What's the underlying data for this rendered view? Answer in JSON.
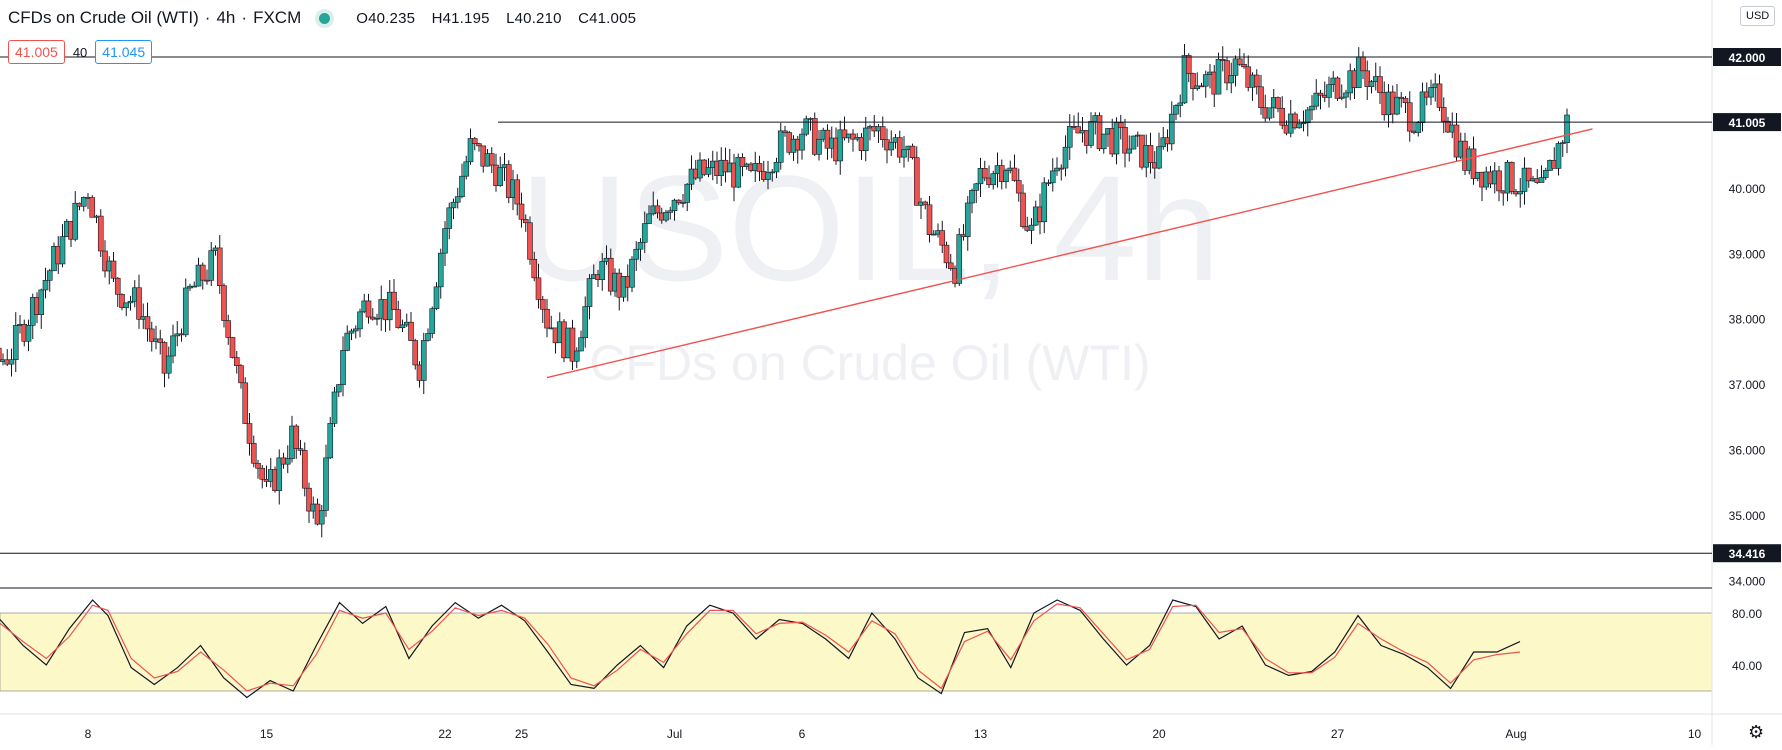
{
  "header": {
    "symbol": "CFDs on Crude Oil (WTI)",
    "interval": "4h",
    "source": "FXCM",
    "open": "O40.235",
    "high": "H41.195",
    "low": "L40.210",
    "close": "C41.005"
  },
  "prices": {
    "bid": "41.005",
    "spread": "40",
    "ask": "41.045"
  },
  "currency": "USD",
  "watermark": {
    "line1": "USOIL, 4h",
    "line2": "CFDs on Crude Oil (WTI)"
  },
  "colors": {
    "up": "#26a69a",
    "down": "#ef5350",
    "trendline": "#ef5350",
    "stoch_k": "#131722",
    "stoch_d": "#ef5350",
    "stoch_band": "#fdf8c8"
  },
  "chart_data": [
    {
      "type": "candlestick",
      "title": "",
      "ylim": [
        33.8,
        42.8
      ],
      "y_ticks": [
        "42.000",
        "41.000",
        "40.000",
        "39.000",
        "38.000",
        "37.000",
        "36.000",
        "35.000",
        "34.000"
      ],
      "x_ticks": [
        "8",
        "15",
        "22",
        "25",
        "Jul",
        "6",
        "13",
        "20",
        "27",
        "Aug",
        "10"
      ],
      "x_tick_dates": [
        "2020-06-08",
        "2020-06-15",
        "2020-06-22",
        "2020-06-25",
        "2020-07-01",
        "2020-07-06",
        "2020-07-13",
        "2020-07-20",
        "2020-07-27",
        "2020-08-03",
        "2020-08-10"
      ],
      "horizontal_levels": [
        {
          "label": "42.000",
          "value": 42.0
        },
        {
          "label": "41.005",
          "value": 41.005
        },
        {
          "label": "34.416",
          "value": 34.416
        }
      ],
      "trendline": {
        "start": [
          "2020-06-26",
          37.1
        ],
        "end": [
          "2020-08-06",
          40.9
        ]
      },
      "path_close": [
        [
          "2020-06-01",
          36.6
        ],
        [
          "2020-06-03",
          36.9
        ],
        [
          "2020-06-05",
          37.5
        ],
        [
          "2020-06-08",
          40.0
        ],
        [
          "2020-06-09",
          38.5
        ],
        [
          "2020-06-10",
          38.2
        ],
        [
          "2020-06-11",
          37.2
        ],
        [
          "2020-06-12",
          38.4
        ],
        [
          "2020-06-13",
          38.9
        ],
        [
          "2020-06-14",
          36.8
        ],
        [
          "2020-06-15",
          35.3
        ],
        [
          "2020-06-16",
          36.2
        ],
        [
          "2020-06-17",
          34.8
        ],
        [
          "2020-06-18",
          37.6
        ],
        [
          "2020-06-19",
          38.3
        ],
        [
          "2020-06-20",
          38.1
        ],
        [
          "2020-06-21",
          37.3
        ],
        [
          "2020-06-22",
          39.4
        ],
        [
          "2020-06-23",
          40.6
        ],
        [
          "2020-06-24",
          40.3
        ],
        [
          "2020-06-25",
          39.7
        ],
        [
          "2020-06-26",
          38.0
        ],
        [
          "2020-06-27",
          37.5
        ],
        [
          "2020-06-28",
          38.8
        ],
        [
          "2020-06-29",
          38.4
        ],
        [
          "2020-06-30",
          39.5
        ],
        [
          "2020-07-01",
          39.9
        ],
        [
          "2020-07-02",
          40.2
        ],
        [
          "2020-07-03",
          40.3
        ],
        [
          "2020-07-04",
          40.1
        ],
        [
          "2020-07-05",
          40.6
        ],
        [
          "2020-07-06",
          40.9
        ],
        [
          "2020-07-07",
          40.6
        ],
        [
          "2020-07-08",
          40.7
        ],
        [
          "2020-07-09",
          40.9
        ],
        [
          "2020-07-10",
          40.6
        ],
        [
          "2020-07-11",
          39.4
        ],
        [
          "2020-07-12",
          38.8
        ],
        [
          "2020-07-13",
          40.2
        ],
        [
          "2020-07-14",
          40.4
        ],
        [
          "2020-07-15",
          39.3
        ],
        [
          "2020-07-16",
          40.5
        ],
        [
          "2020-07-17",
          40.9
        ],
        [
          "2020-07-18",
          40.8
        ],
        [
          "2020-07-19",
          40.6
        ],
        [
          "2020-07-20",
          40.4
        ],
        [
          "2020-07-21",
          41.8
        ],
        [
          "2020-07-22",
          41.6
        ],
        [
          "2020-07-23",
          41.9
        ],
        [
          "2020-07-24",
          41.3
        ],
        [
          "2020-07-25",
          41.1
        ],
        [
          "2020-07-26",
          41.2
        ],
        [
          "2020-07-27",
          41.6
        ],
        [
          "2020-07-28",
          41.8
        ],
        [
          "2020-07-29",
          41.3
        ],
        [
          "2020-07-30",
          41.1
        ],
        [
          "2020-07-31",
          41.4
        ],
        [
          "2020-08-01",
          40.4
        ],
        [
          "2020-08-02",
          40.2
        ],
        [
          "2020-08-03",
          40.1
        ],
        [
          "2020-08-04",
          39.9
        ],
        [
          "2020-08-05",
          41.0
        ]
      ]
    },
    {
      "type": "line",
      "title": "",
      "ylim": [
        20,
        100
      ],
      "y_ticks": [
        "80.00",
        "40.00"
      ],
      "band": [
        20,
        80
      ],
      "series": [
        {
          "key": "k",
          "values": [
            [
              0,
              75
            ],
            [
              3,
              55
            ],
            [
              6,
              40
            ],
            [
              9,
              68
            ],
            [
              12,
              90
            ],
            [
              14,
              78
            ],
            [
              17,
              38
            ],
            [
              20,
              25
            ],
            [
              23,
              38
            ],
            [
              26,
              55
            ],
            [
              29,
              30
            ],
            [
              32,
              15
            ],
            [
              35,
              28
            ],
            [
              38,
              20
            ],
            [
              41,
              55
            ],
            [
              44,
              88
            ],
            [
              47,
              72
            ],
            [
              50,
              85
            ],
            [
              53,
              45
            ],
            [
              56,
              70
            ],
            [
              59,
              88
            ],
            [
              62,
              76
            ],
            [
              65,
              86
            ],
            [
              68,
              74
            ],
            [
              71,
              50
            ],
            [
              74,
              25
            ],
            [
              77,
              22
            ],
            [
              80,
              40
            ],
            [
              83,
              55
            ],
            [
              86,
              38
            ],
            [
              89,
              70
            ],
            [
              92,
              86
            ],
            [
              95,
              80
            ],
            [
              98,
              60
            ],
            [
              101,
              75
            ],
            [
              104,
              72
            ],
            [
              107,
              60
            ],
            [
              110,
              45
            ],
            [
              113,
              80
            ],
            [
              116,
              60
            ],
            [
              119,
              30
            ],
            [
              122,
              18
            ],
            [
              125,
              65
            ],
            [
              128,
              68
            ],
            [
              131,
              38
            ],
            [
              134,
              80
            ],
            [
              137,
              90
            ],
            [
              140,
              82
            ],
            [
              143,
              60
            ],
            [
              146,
              40
            ],
            [
              149,
              55
            ],
            [
              152,
              90
            ],
            [
              155,
              85
            ],
            [
              158,
              60
            ],
            [
              161,
              70
            ],
            [
              164,
              40
            ],
            [
              167,
              32
            ],
            [
              170,
              35
            ],
            [
              173,
              50
            ],
            [
              176,
              78
            ],
            [
              179,
              55
            ],
            [
              182,
              48
            ],
            [
              185,
              38
            ],
            [
              188,
              22
            ],
            [
              191,
              50
            ],
            [
              194,
              50
            ],
            [
              197,
              58
            ]
          ]
        },
        {
          "key": "d",
          "values": [
            [
              0,
              72
            ],
            [
              3,
              58
            ],
            [
              6,
              45
            ],
            [
              9,
              62
            ],
            [
              12,
              86
            ],
            [
              14,
              82
            ],
            [
              17,
              45
            ],
            [
              20,
              30
            ],
            [
              23,
              35
            ],
            [
              26,
              50
            ],
            [
              29,
              36
            ],
            [
              32,
              20
            ],
            [
              35,
              26
            ],
            [
              38,
              24
            ],
            [
              41,
              48
            ],
            [
              44,
              82
            ],
            [
              47,
              76
            ],
            [
              50,
              80
            ],
            [
              53,
              52
            ],
            [
              56,
              66
            ],
            [
              59,
              84
            ],
            [
              62,
              78
            ],
            [
              65,
              82
            ],
            [
              68,
              76
            ],
            [
              71,
              56
            ],
            [
              74,
              30
            ],
            [
              77,
              24
            ],
            [
              80,
              36
            ],
            [
              83,
              52
            ],
            [
              86,
              42
            ],
            [
              89,
              64
            ],
            [
              92,
              82
            ],
            [
              95,
              82
            ],
            [
              98,
              64
            ],
            [
              101,
              72
            ],
            [
              104,
              73
            ],
            [
              107,
              63
            ],
            [
              110,
              50
            ],
            [
              113,
              74
            ],
            [
              116,
              64
            ],
            [
              119,
              36
            ],
            [
              122,
              22
            ],
            [
              125,
              58
            ],
            [
              128,
              66
            ],
            [
              131,
              44
            ],
            [
              134,
              74
            ],
            [
              137,
              87
            ],
            [
              140,
              84
            ],
            [
              143,
              64
            ],
            [
              146,
              44
            ],
            [
              149,
              52
            ],
            [
              152,
              85
            ],
            [
              155,
              86
            ],
            [
              158,
              65
            ],
            [
              161,
              68
            ],
            [
              164,
              45
            ],
            [
              167,
              34
            ],
            [
              170,
              34
            ],
            [
              173,
              46
            ],
            [
              176,
              72
            ],
            [
              179,
              60
            ],
            [
              182,
              50
            ],
            [
              185,
              42
            ],
            [
              188,
              26
            ],
            [
              191,
              44
            ],
            [
              194,
              48
            ],
            [
              197,
              50
            ]
          ]
        }
      ]
    }
  ]
}
